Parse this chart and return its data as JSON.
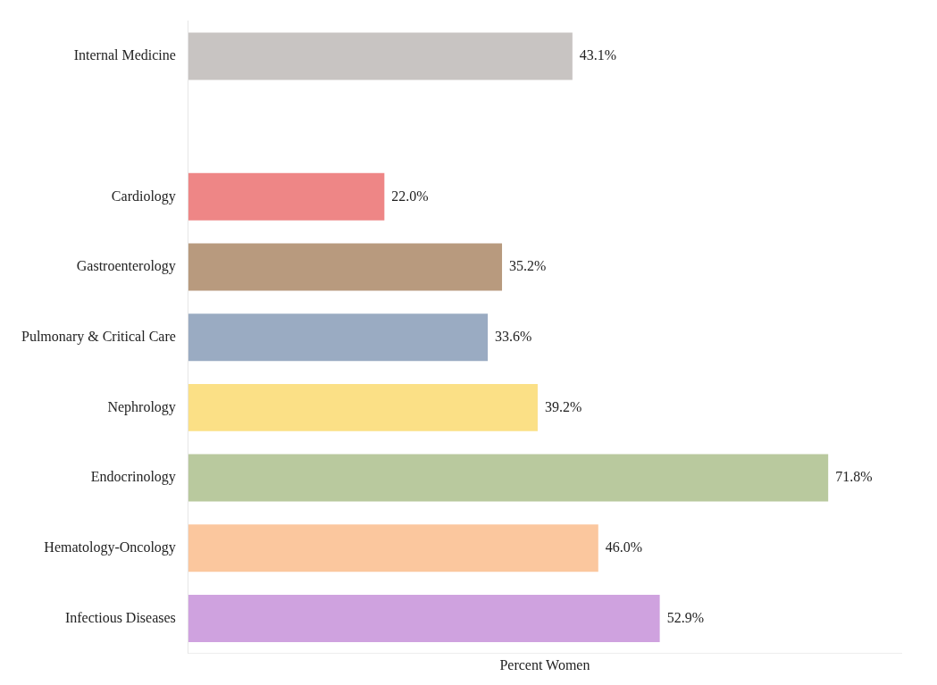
{
  "chart_data": {
    "type": "bar",
    "orientation": "horizontal",
    "xlabel": "Percent Women",
    "categories": [
      "Internal Medicine",
      null,
      "Cardiology",
      "Gastroenterology",
      "Pulmonary & Critical Care",
      "Nephrology",
      "Endocrinology",
      "Hematology-Oncology",
      "Infectious Diseases"
    ],
    "values": [
      43.1,
      null,
      22.0,
      35.2,
      33.6,
      39.2,
      71.8,
      46.0,
      52.9
    ],
    "value_labels": [
      "43.1%",
      null,
      "22.0%",
      "35.2%",
      "33.6%",
      "39.2%",
      "71.8%",
      "46.0%",
      "52.9%"
    ],
    "colors": [
      "#c8c4c2",
      "#ffffff",
      "#ee8686",
      "#b89a7e",
      "#9aabc2",
      "#fbe086",
      "#b9c99e",
      "#fbc79e",
      "#cfa2df"
    ],
    "grid": false,
    "legend": false,
    "tick_labels": "y"
  }
}
